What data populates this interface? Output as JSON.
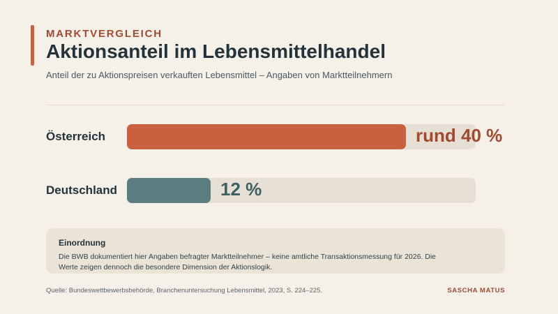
{
  "header": {
    "kicker": "MARKTVERGLEICH",
    "title": "Aktionsanteil im Lebensmittelhandel",
    "subtitle": "Anteil der zu Aktionspreisen verkauften Lebensmittel – Angaben von Marktteilnehmern"
  },
  "chart_data": {
    "type": "bar",
    "orientation": "horizontal",
    "categories": [
      "Österreich",
      "Deutschland"
    ],
    "values": [
      40,
      12
    ],
    "value_labels": [
      "rund 40 %",
      "12 %"
    ],
    "unit": "%",
    "xlim": [
      0,
      50
    ],
    "colors": [
      "#c9603f",
      "#5a7d80"
    ],
    "value_label_colors": [
      "#a24a30",
      "#3f5f63"
    ],
    "grid": false
  },
  "note": {
    "title": "Einordnung",
    "text": "Die BWB dokumentiert hier Angaben befragter Marktteilnehmer – keine amtliche Transaktionsmessung für 2026. Die Werte zeigen dennoch die besondere Dimension der Aktionslogik."
  },
  "footer": {
    "source": "Quelle: Bundeswettbewerbsbehörde, Branchenuntersuchung Lebensmittel, 2023, S. 224–225.",
    "author": "SASCHA MATUS"
  }
}
